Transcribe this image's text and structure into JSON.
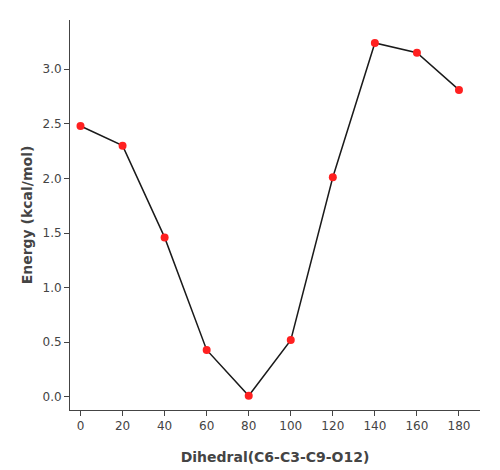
{
  "chart_data": {
    "type": "line",
    "xlabel": "Dihedral(C6-C3-C9-O12)",
    "ylabel": "Energy (kcal/mol)",
    "x": [
      0,
      20,
      40,
      60,
      80,
      100,
      120,
      140,
      160,
      180
    ],
    "series": [
      {
        "values": [
          2.48,
          2.3,
          1.46,
          0.43,
          0.01,
          0.52,
          2.01,
          3.24,
          3.15,
          2.81
        ],
        "color": "#1a1a1a",
        "colors": [
          "#ff2020",
          "#ff2020",
          "#ff2020",
          "#ff2020",
          "#ff2020",
          "#ff2020",
          "#ff2020",
          "#ff2020",
          "#ff2020",
          "#ff2020"
        ],
        "marker": "circle",
        "line_style": "solid"
      }
    ],
    "xlim": [
      -5,
      190
    ],
    "ylim": [
      -0.12,
      3.45
    ],
    "xticks": [
      0,
      20,
      40,
      60,
      80,
      100,
      120,
      140,
      160,
      180
    ],
    "yticks": [
      {
        "value": 0,
        "label": "0.0"
      },
      0.5,
      {
        "value": 1.0,
        "label": "1.0"
      },
      1.5,
      {
        "value": 2.0,
        "label": "2.0"
      },
      2.5,
      {
        "value": 3.0,
        "label": "3.0"
      }
    ],
    "grid": false
  }
}
